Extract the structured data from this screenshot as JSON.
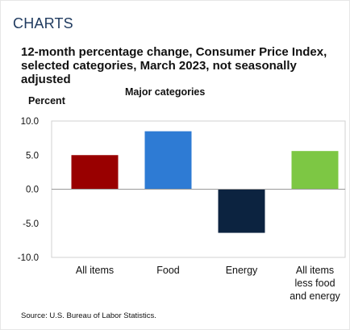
{
  "section_heading": "CHARTS",
  "chart_data": {
    "type": "bar",
    "title": "12-month percentage change, Consumer Price Index, selected categories, March 2023, not seasonally adjusted",
    "subtitle": "Major categories",
    "ylabel": "Percent",
    "xlabel": "",
    "categories": [
      "All items",
      "Food",
      "Energy",
      "All items less food and energy"
    ],
    "category_lines": [
      [
        "All items"
      ],
      [
        "Food"
      ],
      [
        "Energy"
      ],
      [
        "All items",
        "less food",
        "and energy"
      ]
    ],
    "values": [
      5.0,
      8.5,
      -6.4,
      5.6
    ],
    "colors": [
      "#990000",
      "#2e7bd4",
      "#0c2340",
      "#7dc744"
    ],
    "ylim": [
      -10.0,
      10.0
    ],
    "yticks": [
      "-10.0",
      "-5.0",
      "0.0",
      "5.0",
      "10.0"
    ],
    "grid": false,
    "legend": "none"
  },
  "source": "Source: U.S. Bureau of Labor Statistics."
}
